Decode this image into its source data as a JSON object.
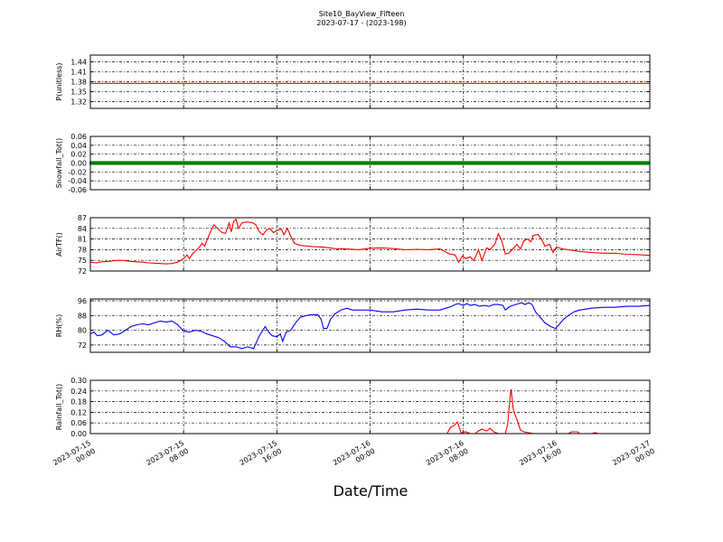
{
  "chart_data": {
    "type": "line",
    "title": "Site10_BayView_Fifteen",
    "subtitle": "2023-07-17 - (2023-198)",
    "xlabel": "Date/Time",
    "x_ticks": [
      [
        "2023-07-15",
        "00:00"
      ],
      [
        "2023-07-15",
        "08:00"
      ],
      [
        "2023-07-15",
        "16:00"
      ],
      [
        "2023-07-16",
        "00:00"
      ],
      [
        "2023-07-16",
        "08:00"
      ],
      [
        "2023-07-16",
        "16:00"
      ],
      [
        "2023-07-17",
        "00:00"
      ]
    ],
    "x_range_hours": [
      0,
      48
    ],
    "grid": true,
    "panels": [
      {
        "ylabel": "P(unitless)",
        "color": "#ff0000",
        "ylim": [
          1.3,
          1.46
        ],
        "yticks": [
          "1.32",
          "1.35",
          "1.38",
          "1.41",
          "1.44"
        ],
        "ytick_values": [
          1.32,
          1.35,
          1.38,
          1.41,
          1.44
        ],
        "points": [
          [
            0,
            1.375
          ],
          [
            48,
            1.375
          ]
        ]
      },
      {
        "ylabel": "Snowfall_Tot()",
        "color": "#008000",
        "marker": true,
        "ylim": [
          -0.06,
          0.06
        ],
        "yticks": [
          "-0.06",
          "-0.04",
          "-0.02",
          "0.00",
          "0.02",
          "0.04",
          "0.06"
        ],
        "ytick_values": [
          -0.06,
          -0.04,
          -0.02,
          0.0,
          0.02,
          0.04,
          0.06
        ],
        "points": [
          [
            0,
            0
          ],
          [
            48,
            0
          ]
        ]
      },
      {
        "ylabel": "AirTF()",
        "color": "#ff0000",
        "ylim": [
          72,
          87
        ],
        "yticks": [
          "72",
          "75",
          "78",
          "81",
          "84",
          "87"
        ],
        "ytick_values": [
          72,
          75,
          78,
          81,
          84,
          87
        ],
        "points": [
          [
            0,
            74.5
          ],
          [
            0.5,
            74.3
          ],
          [
            1,
            74.6
          ],
          [
            1.5,
            74.7
          ],
          [
            2,
            74.9
          ],
          [
            2.5,
            75.0
          ],
          [
            3,
            74.9
          ],
          [
            3.5,
            74.7
          ],
          [
            4,
            74.6
          ],
          [
            4.5,
            74.5
          ],
          [
            5,
            74.3
          ],
          [
            5.5,
            74.2
          ],
          [
            6,
            74.1
          ],
          [
            6.5,
            74.0
          ],
          [
            7,
            74.1
          ],
          [
            7.5,
            74.5
          ],
          [
            8,
            75.5
          ],
          [
            8.3,
            76.5
          ],
          [
            8.5,
            75.5
          ],
          [
            8.8,
            77.0
          ],
          [
            9.3,
            78.5
          ],
          [
            9.6,
            79.8
          ],
          [
            9.8,
            79.0
          ],
          [
            10.3,
            83.0
          ],
          [
            10.6,
            85.0
          ],
          [
            10.9,
            84.0
          ],
          [
            11.3,
            82.8
          ],
          [
            11.6,
            82.6
          ],
          [
            11.9,
            85.5
          ],
          [
            12.1,
            83.0
          ],
          [
            12.3,
            86.0
          ],
          [
            12.5,
            86.6
          ],
          [
            12.7,
            84.0
          ],
          [
            13.0,
            85.5
          ],
          [
            13.4,
            85.8
          ],
          [
            13.9,
            85.6
          ],
          [
            14.2,
            85.0
          ],
          [
            14.5,
            83.0
          ],
          [
            14.8,
            82.2
          ],
          [
            15.1,
            83.5
          ],
          [
            15.4,
            84.0
          ],
          [
            15.7,
            82.8
          ],
          [
            16.0,
            83.4
          ],
          [
            16.4,
            83.8
          ],
          [
            16.6,
            82.2
          ],
          [
            16.9,
            84.0
          ],
          [
            17.2,
            81.8
          ],
          [
            17.5,
            79.8
          ],
          [
            18.0,
            79.2
          ],
          [
            19.0,
            78.9
          ],
          [
            20.0,
            78.7
          ],
          [
            21.0,
            78.3
          ],
          [
            22.0,
            78.2
          ],
          [
            23.0,
            78.0
          ],
          [
            24.0,
            78.4
          ],
          [
            25.0,
            78.5
          ],
          [
            26.0,
            78.3
          ],
          [
            27.0,
            78.0
          ],
          [
            28.0,
            78.1
          ],
          [
            29.0,
            78.0
          ],
          [
            30.0,
            78.2
          ],
          [
            30.8,
            76.8
          ],
          [
            31.3,
            76.5
          ],
          [
            31.6,
            74.5
          ],
          [
            31.9,
            76.2
          ],
          [
            32.2,
            75.5
          ],
          [
            32.6,
            76.0
          ],
          [
            32.9,
            74.9
          ],
          [
            33.3,
            78.0
          ],
          [
            33.6,
            75.0
          ],
          [
            34.0,
            78.5
          ],
          [
            34.3,
            78.0
          ],
          [
            34.7,
            79.5
          ],
          [
            35.0,
            82.5
          ],
          [
            35.3,
            80.5
          ],
          [
            35.6,
            76.8
          ],
          [
            35.9,
            77.0
          ],
          [
            36.2,
            78.0
          ],
          [
            36.6,
            79.5
          ],
          [
            36.9,
            78.2
          ],
          [
            37.2,
            80.5
          ],
          [
            37.5,
            81.0
          ],
          [
            37.8,
            80.2
          ],
          [
            38.0,
            82.0
          ],
          [
            38.4,
            82.3
          ],
          [
            38.7,
            81.0
          ],
          [
            39.0,
            79.0
          ],
          [
            39.4,
            79.5
          ],
          [
            39.7,
            77.2
          ],
          [
            40.0,
            78.8
          ],
          [
            40.5,
            78.2
          ],
          [
            41.0,
            78.0
          ],
          [
            42.0,
            77.5
          ],
          [
            43.0,
            77.2
          ],
          [
            44.0,
            77.0
          ],
          [
            45.0,
            77.0
          ],
          [
            46.0,
            76.7
          ],
          [
            47.0,
            76.6
          ],
          [
            48.0,
            76.4
          ]
        ]
      },
      {
        "ylabel": "RH(%)",
        "color": "#0000ff",
        "ylim": [
          68,
          97
        ],
        "yticks": [
          "72",
          "80",
          "88",
          "96"
        ],
        "ytick_values": [
          72,
          80,
          88,
          96
        ],
        "points": [
          [
            0,
            78
          ],
          [
            0.3,
            79
          ],
          [
            0.6,
            77
          ],
          [
            1.0,
            77.5
          ],
          [
            1.5,
            80
          ],
          [
            2.0,
            77.5
          ],
          [
            2.5,
            78
          ],
          [
            3.0,
            80
          ],
          [
            3.5,
            82
          ],
          [
            4.0,
            83
          ],
          [
            4.5,
            83.5
          ],
          [
            5.0,
            83
          ],
          [
            5.5,
            84
          ],
          [
            6.0,
            85
          ],
          [
            6.5,
            84.5
          ],
          [
            7.0,
            85
          ],
          [
            7.5,
            83
          ],
          [
            8.0,
            79.5
          ],
          [
            8.5,
            79
          ],
          [
            9.0,
            80
          ],
          [
            9.5,
            79.5
          ],
          [
            10.0,
            78
          ],
          [
            10.5,
            77
          ],
          [
            11.0,
            76
          ],
          [
            11.5,
            74
          ],
          [
            12.0,
            71
          ],
          [
            12.5,
            71
          ],
          [
            13.0,
            70
          ],
          [
            13.5,
            71
          ],
          [
            14.0,
            70
          ],
          [
            14.5,
            77
          ],
          [
            15.0,
            82
          ],
          [
            15.3,
            79
          ],
          [
            15.6,
            77
          ],
          [
            16.0,
            76.5
          ],
          [
            16.3,
            78
          ],
          [
            16.5,
            74
          ],
          [
            16.8,
            79
          ],
          [
            17.2,
            80
          ],
          [
            17.6,
            84
          ],
          [
            18.0,
            87
          ],
          [
            18.5,
            88
          ],
          [
            19.0,
            88.5
          ],
          [
            19.5,
            88.5
          ],
          [
            19.8,
            86
          ],
          [
            20.0,
            81
          ],
          [
            20.3,
            81
          ],
          [
            20.6,
            86
          ],
          [
            21.0,
            89
          ],
          [
            21.5,
            91
          ],
          [
            22.0,
            92
          ],
          [
            22.5,
            91
          ],
          [
            23.0,
            91
          ],
          [
            24.0,
            91
          ],
          [
            25.0,
            90
          ],
          [
            26.0,
            90
          ],
          [
            27.0,
            91
          ],
          [
            28.0,
            91.5
          ],
          [
            29.0,
            91
          ],
          [
            30.0,
            91
          ],
          [
            30.5,
            92
          ],
          [
            31.0,
            93
          ],
          [
            31.3,
            94
          ],
          [
            31.6,
            94.5
          ],
          [
            32.0,
            93.5
          ],
          [
            32.3,
            94.5
          ],
          [
            32.6,
            93.5
          ],
          [
            33.0,
            94
          ],
          [
            33.4,
            93
          ],
          [
            33.8,
            93.5
          ],
          [
            34.2,
            93
          ],
          [
            34.6,
            94
          ],
          [
            35.0,
            94
          ],
          [
            35.4,
            93.5
          ],
          [
            35.6,
            91
          ],
          [
            36.0,
            93
          ],
          [
            36.5,
            94
          ],
          [
            37.0,
            95
          ],
          [
            37.3,
            94
          ],
          [
            37.6,
            95
          ],
          [
            37.9,
            94
          ],
          [
            38.2,
            90
          ],
          [
            38.6,
            87
          ],
          [
            39.0,
            84
          ],
          [
            39.5,
            82
          ],
          [
            39.9,
            81
          ],
          [
            40.2,
            83
          ],
          [
            40.6,
            86
          ],
          [
            41.0,
            88
          ],
          [
            41.5,
            90
          ],
          [
            42.0,
            91
          ],
          [
            43.0,
            92
          ],
          [
            44.0,
            92.5
          ],
          [
            45.0,
            92.5
          ],
          [
            46.0,
            93
          ],
          [
            47.0,
            93
          ],
          [
            48.0,
            93.5
          ]
        ]
      },
      {
        "ylabel": "Rainfall_Tot()",
        "color": "#ff0000",
        "ylim": [
          0,
          0.3
        ],
        "yticks": [
          "0.00",
          "0.06",
          "0.12",
          "0.18",
          "0.24",
          "0.30"
        ],
        "ytick_values": [
          0.0,
          0.06,
          0.12,
          0.18,
          0.24,
          0.3
        ],
        "points": [
          [
            0,
            0
          ],
          [
            30.6,
            0
          ],
          [
            30.9,
            0.035
          ],
          [
            31.2,
            0.045
          ],
          [
            31.5,
            0.065
          ],
          [
            31.8,
            0.005
          ],
          [
            32.2,
            0.01
          ],
          [
            32.6,
            0
          ],
          [
            33.0,
            0
          ],
          [
            33.3,
            0.015
          ],
          [
            33.6,
            0.025
          ],
          [
            34.0,
            0.015
          ],
          [
            34.3,
            0.03
          ],
          [
            34.6,
            0.01
          ],
          [
            35.0,
            0
          ],
          [
            35.6,
            0
          ],
          [
            35.8,
            0.05
          ],
          [
            36.0,
            0.2
          ],
          [
            36.1,
            0.25
          ],
          [
            36.3,
            0.13
          ],
          [
            36.6,
            0.08
          ],
          [
            36.9,
            0.02
          ],
          [
            37.2,
            0.01
          ],
          [
            37.6,
            0.005
          ],
          [
            38.0,
            0
          ],
          [
            41.0,
            0
          ],
          [
            41.3,
            0.01
          ],
          [
            41.8,
            0.01
          ],
          [
            42.0,
            0
          ],
          [
            43.0,
            0
          ],
          [
            43.3,
            0.005
          ],
          [
            43.6,
            0
          ],
          [
            48.0,
            0
          ]
        ]
      }
    ]
  }
}
